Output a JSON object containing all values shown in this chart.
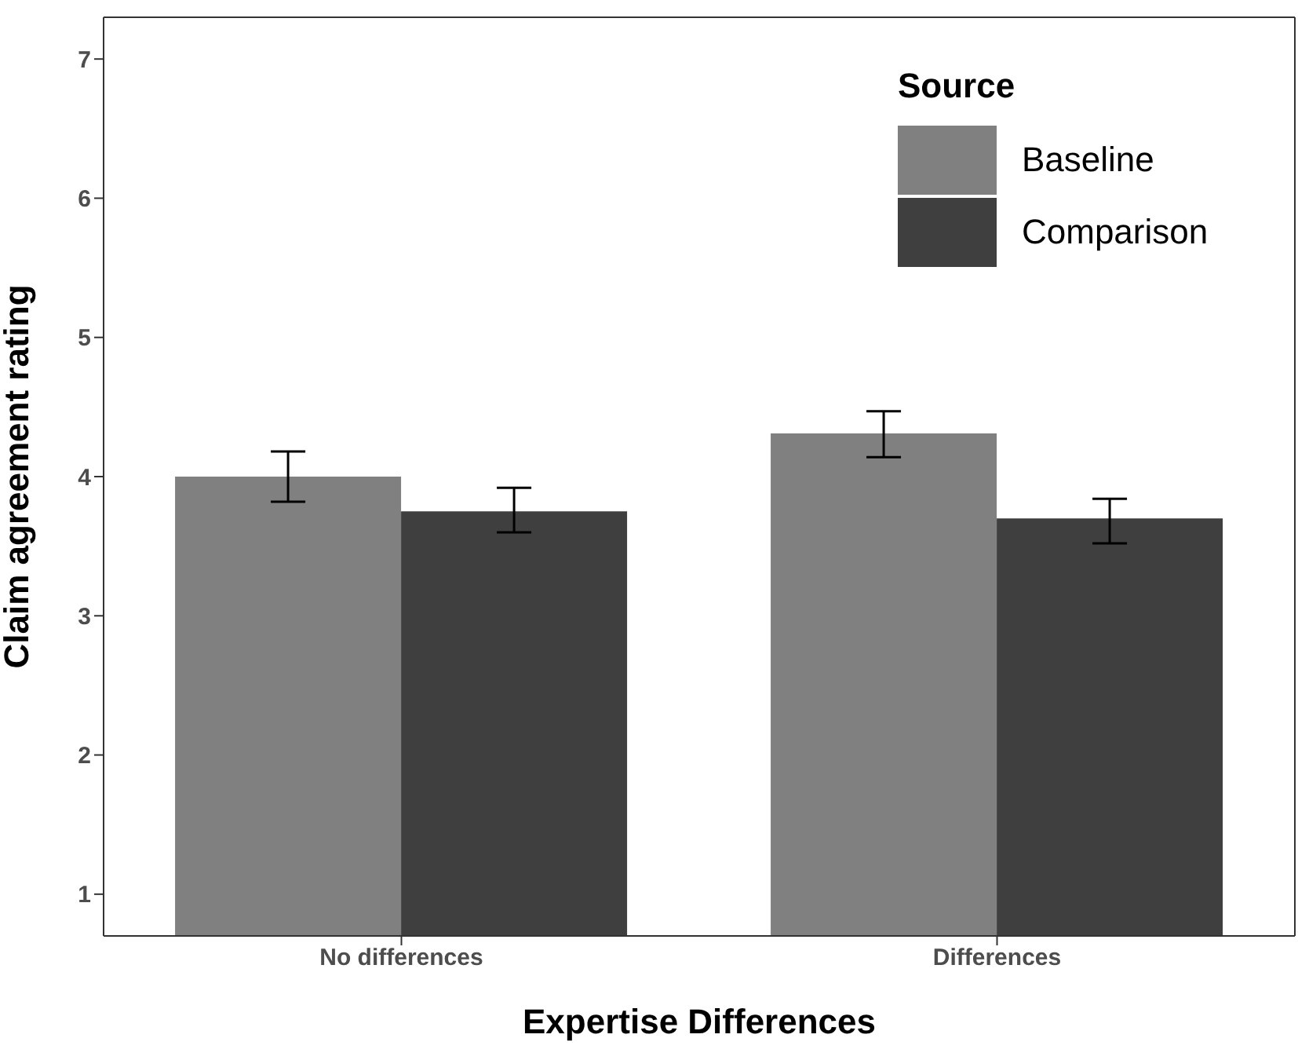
{
  "chart_data": {
    "type": "bar",
    "xlabel": "Expertise Differences",
    "ylabel": "Claim agreement rating",
    "legend_title": "Source",
    "categories": [
      "No differences",
      "Differences"
    ],
    "series": [
      {
        "name": "Baseline",
        "color": "#808080",
        "values": [
          4.0,
          4.31
        ],
        "errors": [
          [
            3.82,
            4.18
          ],
          [
            4.14,
            4.47
          ]
        ]
      },
      {
        "name": "Comparison",
        "color": "#3f3f3f",
        "values": [
          3.75,
          3.7
        ],
        "errors": [
          [
            3.6,
            3.92
          ],
          [
            3.52,
            3.84
          ]
        ]
      }
    ],
    "ylim": [
      0.7,
      7.3
    ],
    "yticks": [
      1,
      2,
      3,
      4,
      5,
      6,
      7
    ],
    "grid": false,
    "legend": "top right"
  }
}
